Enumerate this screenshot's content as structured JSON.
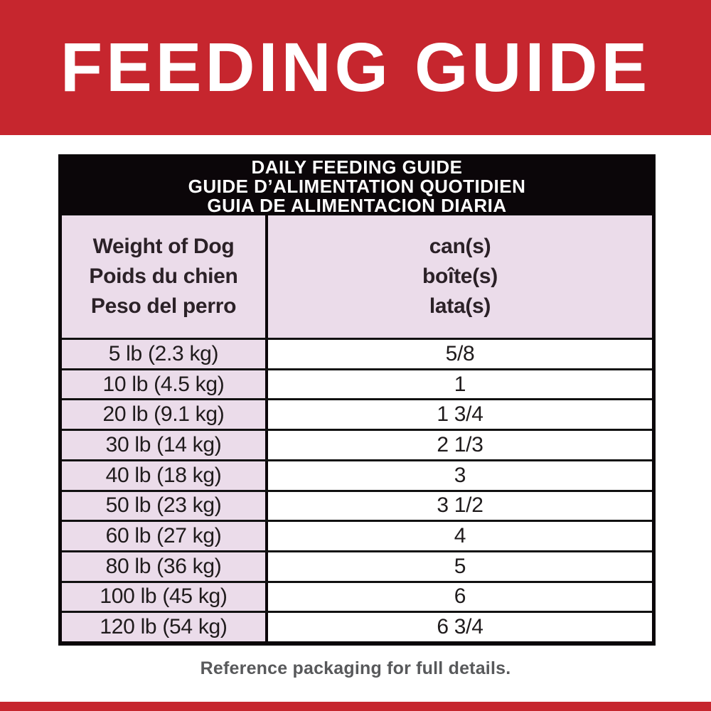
{
  "colors": {
    "brand-red": "#C6262E",
    "banner-text": "#FFFFFF",
    "band-black": "#0B0609",
    "title-text": "#FFFFFF",
    "table-pink": "#EBDCEA",
    "row-line": "#111111",
    "header-text": "#2B2127",
    "text-dark": "#1F1B1C",
    "footnote-gray": "#58595B"
  },
  "banner": {
    "title": "FEEDING GUIDE"
  },
  "table": {
    "title_lines": [
      "DAILY FEEDING GUIDE",
      "GUIDE D’ALIMENTATION QUOTIDIEN",
      "GUIA DE ALIMENTACION DIARIA"
    ],
    "column_headers": {
      "weight": [
        "Weight of Dog",
        "Poids du chien",
        "Peso del perro"
      ],
      "cans": [
        "can(s)",
        "boîte(s)",
        "lata(s)"
      ]
    },
    "rows": [
      {
        "weight": "5 lb (2.3 kg)",
        "cans": "5/8"
      },
      {
        "weight": "10 lb (4.5 kg)",
        "cans": "1"
      },
      {
        "weight": "20 lb (9.1 kg)",
        "cans": "1 3/4"
      },
      {
        "weight": "30 lb (14 kg)",
        "cans": "2 1/3"
      },
      {
        "weight": "40 lb (18 kg)",
        "cans": "3"
      },
      {
        "weight": "50 lb (23 kg)",
        "cans": "3 1/2"
      },
      {
        "weight": "60 lb (27 kg)",
        "cans": "4"
      },
      {
        "weight": "80 lb (36 kg)",
        "cans": "5"
      },
      {
        "weight": "100 lb (45 kg)",
        "cans": "6"
      },
      {
        "weight": "120 lb (54 kg)",
        "cans": "6 3/4"
      }
    ]
  },
  "footer": {
    "note": "Reference packaging for full details."
  }
}
